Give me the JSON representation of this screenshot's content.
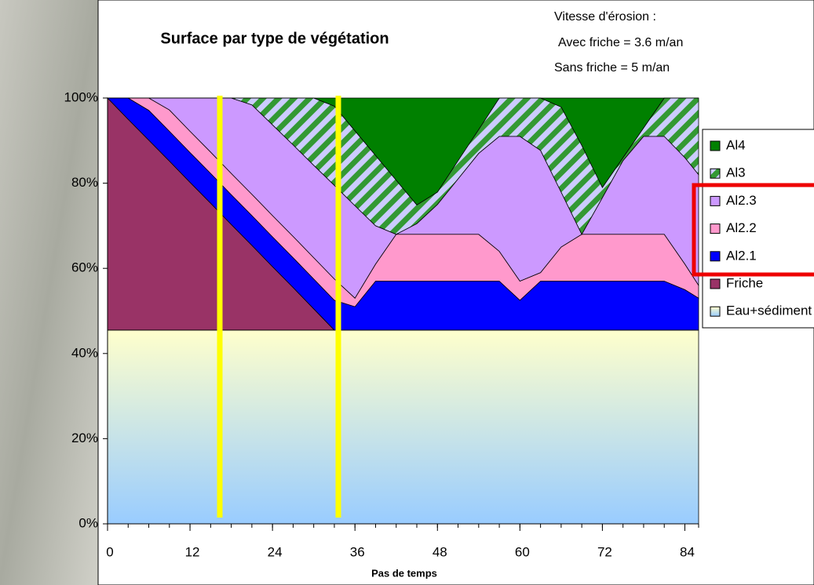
{
  "chart_data": {
    "type": "stacked_area",
    "title": "Surface par type de végétation",
    "annotations": [
      "Vitesse d'érosion :",
      "Avec friche = 3.6 m/an",
      "Sans friche = 5 m/an"
    ],
    "x_label": "Pas de temps",
    "x": [
      0,
      3,
      6,
      9,
      12,
      15,
      18,
      21,
      24,
      27,
      30,
      33,
      36,
      39,
      42,
      45,
      48,
      51,
      54,
      57,
      60,
      63,
      66,
      69,
      72,
      75,
      78,
      81,
      84,
      86
    ],
    "xlim": [
      0,
      86
    ],
    "xticks": [
      0,
      12,
      24,
      36,
      48,
      60,
      72,
      84
    ],
    "ylim": [
      0,
      100
    ],
    "yticks": [
      {
        "value": 0,
        "label": "0%"
      },
      {
        "value": 20,
        "label": "20%"
      },
      {
        "value": 40,
        "label": "40%"
      },
      {
        "value": 60,
        "label": "60%"
      },
      {
        "value": 80,
        "label": "80%"
      },
      {
        "value": 100,
        "label": "100%"
      }
    ],
    "legend": "right",
    "series": [
      {
        "name": "Eau+sédiment",
        "color": "#ffffcc",
        "gradient_to": "#99ccff",
        "values": [
          45.5,
          45.5,
          45.5,
          45.5,
          45.5,
          45.5,
          45.5,
          45.5,
          45.5,
          45.5,
          45.5,
          45.5,
          45.5,
          45.5,
          45.5,
          45.5,
          45.5,
          45.5,
          45.5,
          45.5,
          45.5,
          45.5,
          45.5,
          45.5,
          45.5,
          45.5,
          45.5,
          45.5,
          45.5,
          45.5
        ]
      },
      {
        "name": "Friche",
        "color": "#993366",
        "values": [
          54.5,
          49.5,
          44.6,
          39.7,
          34.7,
          29.8,
          24.8,
          19.9,
          14.9,
          10,
          5,
          0,
          0,
          0,
          0,
          0,
          0,
          0,
          0,
          0,
          0,
          0,
          0,
          0,
          0,
          0,
          0,
          0,
          0,
          0
        ]
      },
      {
        "name": "Al2.1",
        "color": "#0000ff",
        "values": [
          0,
          5,
          7,
          7,
          7,
          7,
          7,
          7,
          7,
          7,
          7,
          7,
          5.5,
          11.5,
          11.5,
          11.5,
          11.5,
          11.5,
          11.5,
          11.5,
          7,
          11.5,
          11.5,
          11.5,
          11.5,
          11.5,
          11.5,
          11.5,
          9.5,
          7.5
        ]
      },
      {
        "name": "Al2.2",
        "color": "#ff99cc",
        "values": [
          0,
          0,
          2.9,
          5,
          5,
          5,
          5,
          5,
          5,
          5,
          5,
          5,
          2,
          4,
          11,
          11,
          11,
          11,
          11,
          7,
          4.5,
          2,
          8,
          11,
          11,
          11,
          11,
          11,
          6,
          3
        ]
      },
      {
        "name": "Al2.3",
        "color": "#cc99ff",
        "values": [
          0,
          0,
          0,
          2.8,
          7.8,
          12.7,
          17.7,
          21,
          21.3,
          21.5,
          21.7,
          22,
          21.7,
          9,
          0,
          2.5,
          7,
          13,
          19,
          27,
          34,
          28.7,
          12.9,
          0,
          8.6,
          17.3,
          23,
          23,
          25,
          26
        ]
      },
      {
        "name": "Al3",
        "color": "#339933",
        "hatch_color": "#ccccff",
        "values": [
          0,
          0,
          0,
          0,
          0,
          0,
          0,
          1.6,
          6.3,
          11,
          15.8,
          18.6,
          17.6,
          16.5,
          12.7,
          4.4,
          2.9,
          4.3,
          5.6,
          9,
          9,
          12.3,
          20,
          20.9,
          2.4,
          0.7,
          2,
          9,
          14,
          18
        ]
      },
      {
        "name": "Al4",
        "color": "#008000",
        "values": [
          0,
          0,
          0,
          0,
          0,
          0,
          0,
          0,
          0,
          0,
          0,
          1.9,
          7.7,
          13.5,
          19.3,
          25.1,
          22.1,
          14.7,
          7.4,
          0,
          0,
          0,
          2.1,
          11.1,
          21,
          14,
          7,
          0,
          0,
          0
        ]
      }
    ]
  }
}
